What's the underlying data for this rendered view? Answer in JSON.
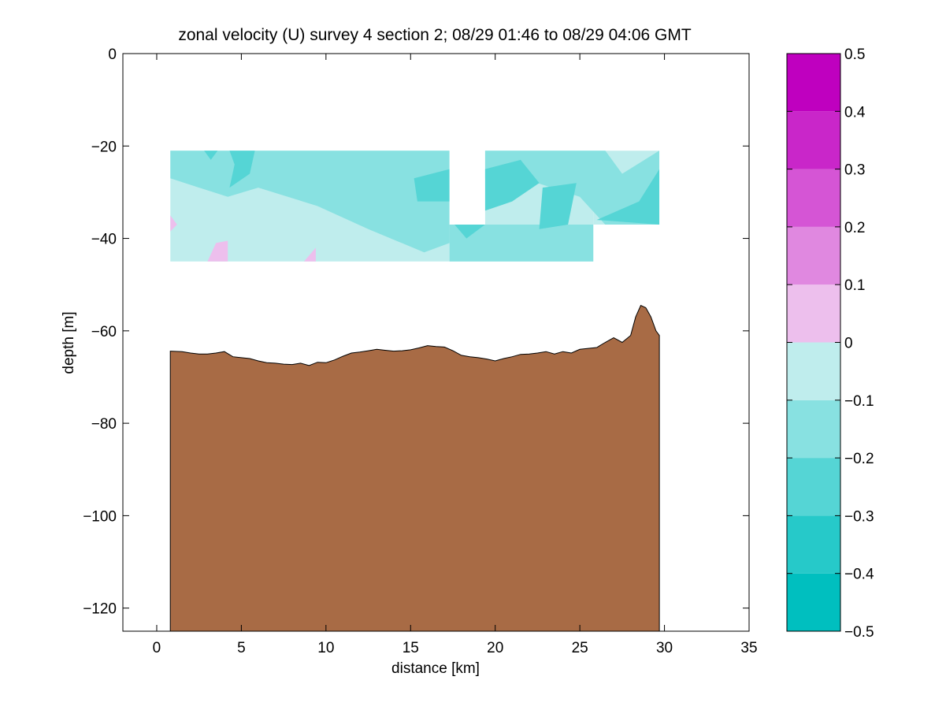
{
  "chart_data": {
    "type": "contour-section",
    "title": "zonal velocity (U) survey 4 section 2; 08/29 01:46 to 08/29 04:06 GMT",
    "xlabel": "distance [km]",
    "ylabel": "depth [m]",
    "xlim": [
      -2,
      35
    ],
    "ylim": [
      -125,
      0
    ],
    "x_ticks": [
      0,
      5,
      10,
      15,
      20,
      25,
      30,
      35
    ],
    "y_ticks": [
      0,
      -20,
      -40,
      -60,
      -80,
      -100,
      -120
    ],
    "colorbar": {
      "levels": [
        -0.5,
        -0.4,
        -0.3,
        -0.2,
        -0.1,
        0,
        0.1,
        0.2,
        0.3,
        0.4,
        0.5
      ],
      "tick_labels": [
        "0.5",
        "0.4",
        "0.3",
        "0.2",
        "0.1",
        "0",
        "−0.1",
        "−0.2",
        "−0.3",
        "−0.4",
        "−0.5"
      ],
      "colors": [
        "#00bfbf",
        "#26c9c9",
        "#55d5d5",
        "#88e1e1",
        "#bfeded",
        "#edbfed",
        "#e088e0",
        "#d555d5",
        "#c926c9",
        "#bf00bf"
      ]
    },
    "field": {
      "background_color": "#bfeded",
      "regions": [
        {
          "color": "#88e1e1",
          "points": [
            [
              0.8,
              -21
            ],
            [
              17.3,
              -21
            ],
            [
              17.3,
              -41
            ],
            [
              15.8,
              -43
            ],
            [
              12.5,
              -38
            ],
            [
              9.5,
              -33
            ],
            [
              6.0,
              -29
            ],
            [
              4.2,
              -31
            ],
            [
              2.5,
              -29
            ],
            [
              0.8,
              -27
            ]
          ]
        },
        {
          "color": "#88e1e1",
          "points": [
            [
              17.3,
              -37
            ],
            [
              25.8,
              -37
            ],
            [
              25.8,
              -45
            ],
            [
              17.3,
              -45
            ]
          ]
        },
        {
          "color": "#88e1e1",
          "points": [
            [
              19.4,
              -21
            ],
            [
              26.5,
              -21
            ],
            [
              27.5,
              -26
            ],
            [
              29.7,
              -21
            ],
            [
              29.7,
              -37
            ],
            [
              26.5,
              -37
            ],
            [
              25.0,
              -31
            ],
            [
              22.5,
              -28
            ],
            [
              20.5,
              -25
            ],
            [
              19.4,
              -27
            ]
          ]
        },
        {
          "color": "#55d5d5",
          "points": [
            [
              2.8,
              -21
            ],
            [
              3.6,
              -21
            ],
            [
              3.2,
              -23
            ]
          ]
        },
        {
          "color": "#55d5d5",
          "points": [
            [
              4.3,
              -21
            ],
            [
              5.8,
              -21
            ],
            [
              5.5,
              -26
            ],
            [
              4.3,
              -29
            ],
            [
              4.6,
              -24
            ]
          ]
        },
        {
          "color": "#55d5d5",
          "points": [
            [
              15.2,
              -27
            ],
            [
              17.3,
              -25
            ],
            [
              17.3,
              -32
            ],
            [
              15.4,
              -32
            ]
          ]
        },
        {
          "color": "#55d5d5",
          "points": [
            [
              19.4,
              -25
            ],
            [
              21.5,
              -23
            ],
            [
              22.6,
              -28
            ],
            [
              21.0,
              -32
            ],
            [
              19.4,
              -34
            ]
          ]
        },
        {
          "color": "#55d5d5",
          "points": [
            [
              22.8,
              -29
            ],
            [
              24.8,
              -28
            ],
            [
              24.3,
              -37
            ],
            [
              22.6,
              -38
            ]
          ]
        },
        {
          "color": "#55d5d5",
          "points": [
            [
              26.0,
              -36
            ],
            [
              28.5,
              -32
            ],
            [
              29.7,
              -25
            ],
            [
              29.7,
              -37
            ]
          ]
        },
        {
          "color": "#55d5d5",
          "points": [
            [
              17.6,
              -37
            ],
            [
              19.4,
              -37
            ],
            [
              18.3,
              -40
            ]
          ]
        },
        {
          "color": "#edbfed",
          "points": [
            [
              0.8,
              -35
            ],
            [
              1.2,
              -37
            ],
            [
              0.8,
              -38.5
            ]
          ]
        },
        {
          "color": "#edbfed",
          "points": [
            [
              3.5,
              -41
            ],
            [
              4.2,
              -40.5
            ],
            [
              4.2,
              -45
            ],
            [
              3.0,
              -45
            ]
          ]
        },
        {
          "color": "#edbfed",
          "points": [
            [
              8.7,
              -45
            ],
            [
              9.4,
              -42
            ],
            [
              9.4,
              -45
            ]
          ]
        }
      ],
      "data_blocks": [
        {
          "x": [
            0.8,
            17.3
          ],
          "y": [
            -45,
            -21
          ]
        },
        {
          "x": [
            17.3,
            19.4
          ],
          "y": [
            -45,
            -37
          ]
        },
        {
          "x": [
            19.4,
            25.8
          ],
          "y": [
            -45,
            -21
          ]
        },
        {
          "x": [
            25.8,
            29.7
          ],
          "y": [
            -37,
            -21
          ]
        }
      ]
    },
    "bathymetry": {
      "color": "#a86b45",
      "x": [
        0.8,
        1.5,
        2.0,
        2.5,
        3.0,
        3.5,
        4.0,
        4.5,
        5.0,
        5.5,
        6.0,
        6.5,
        7.0,
        7.5,
        8.0,
        8.5,
        9.0,
        9.5,
        10.0,
        10.5,
        11.0,
        11.5,
        12.0,
        12.5,
        13.0,
        13.5,
        14.0,
        14.5,
        15.0,
        15.5,
        16.0,
        16.5,
        17.0,
        17.5,
        18.0,
        18.5,
        19.0,
        19.5,
        20.0,
        20.5,
        21.0,
        21.5,
        22.0,
        22.5,
        23.0,
        23.5,
        24.0,
        24.5,
        25.0,
        25.5,
        26.0,
        26.5,
        27.0,
        27.5,
        28.0,
        28.3,
        28.6,
        28.9,
        29.2,
        29.5,
        29.7
      ],
      "depth": [
        -64.4,
        -64.5,
        -64.8,
        -65.0,
        -65.0,
        -64.8,
        -64.5,
        -65.6,
        -65.8,
        -66.0,
        -66.5,
        -66.9,
        -67.0,
        -67.2,
        -67.3,
        -67.0,
        -67.5,
        -66.8,
        -66.9,
        -66.3,
        -65.5,
        -64.8,
        -64.6,
        -64.3,
        -64.0,
        -64.2,
        -64.4,
        -64.3,
        -64.1,
        -63.7,
        -63.2,
        -63.4,
        -63.5,
        -64.3,
        -65.3,
        -65.6,
        -65.8,
        -66.1,
        -66.5,
        -66.0,
        -65.6,
        -65.1,
        -65.0,
        -64.8,
        -64.5,
        -65.0,
        -64.5,
        -64.8,
        -64.0,
        -63.8,
        -63.6,
        -62.5,
        -61.5,
        -62.5,
        -61.0,
        -57.0,
        -54.5,
        -55.0,
        -57.0,
        -60.0,
        -61.0
      ]
    }
  }
}
